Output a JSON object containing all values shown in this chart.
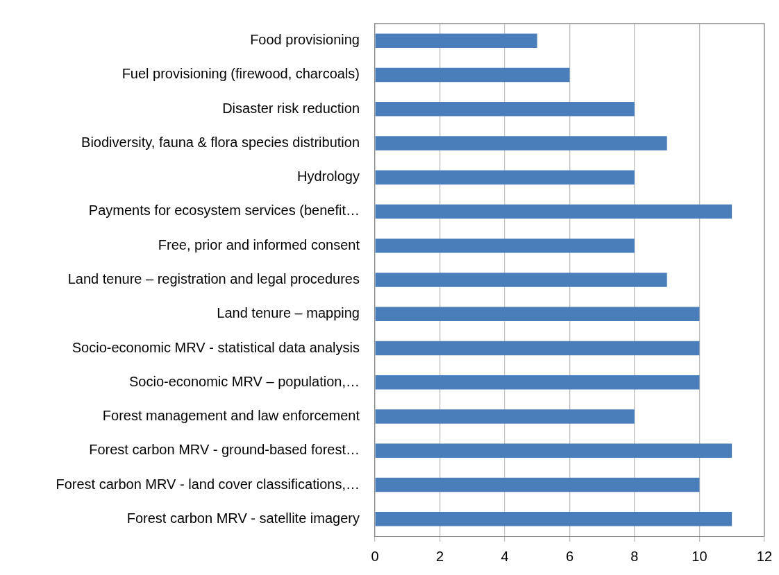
{
  "chart_data": {
    "type": "bar",
    "orientation": "horizontal",
    "categories": [
      "Food provisioning",
      "Fuel provisioning (firewood, charcoals)",
      "Disaster risk reduction",
      "Biodiversity, fauna & flora species distribution",
      "Hydrology",
      "Payments for ecosystem services (benefit…",
      "Free, prior and informed consent",
      "Land tenure – registration and legal procedures",
      "Land tenure – mapping",
      "Socio-economic MRV - statistical data analysis",
      "Socio-economic MRV – population,…",
      "Forest management and law enforcement",
      "Forest carbon MRV - ground-based forest…",
      "Forest carbon MRV - land cover classifications,…",
      "Forest carbon MRV - satellite imagery"
    ],
    "values": [
      5,
      6,
      8,
      9,
      8,
      11,
      8,
      9,
      10,
      10,
      10,
      8,
      11,
      10,
      11
    ],
    "color": "#4a7ebb",
    "xlim": [
      0,
      12
    ],
    "xticks": [
      0,
      2,
      4,
      6,
      8,
      10,
      12
    ],
    "grid": "x",
    "legend": false
  }
}
